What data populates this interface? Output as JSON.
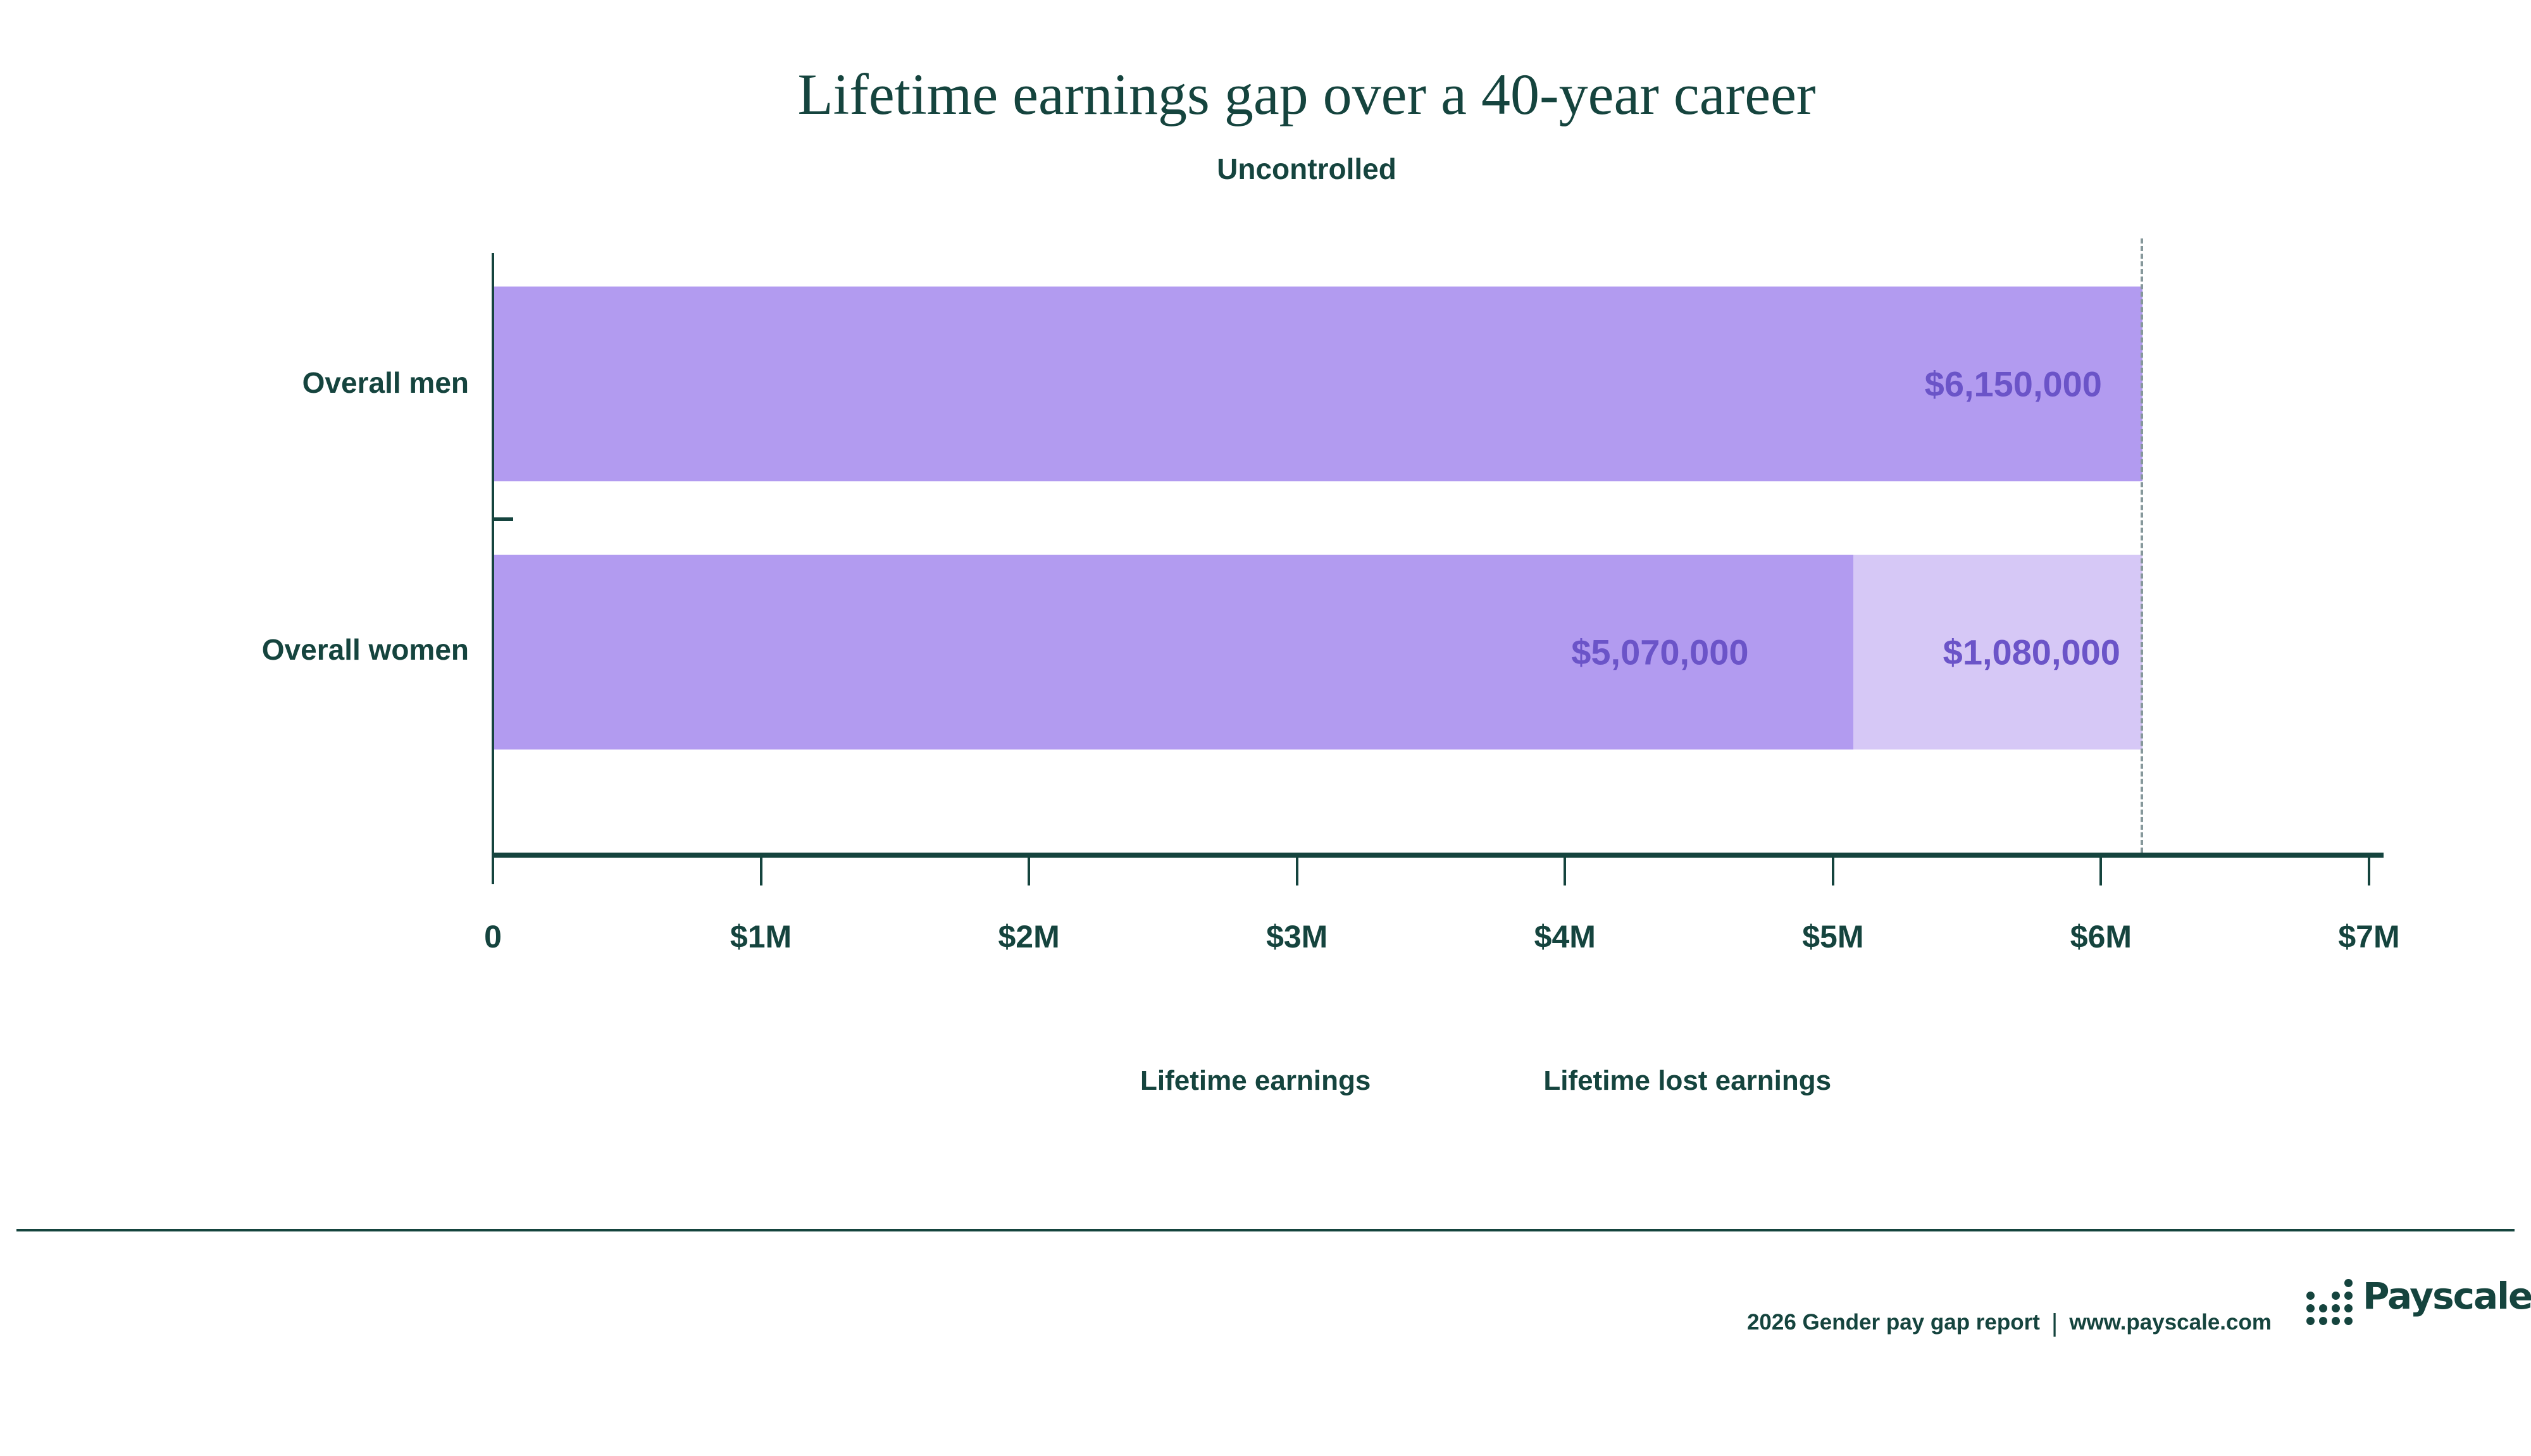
{
  "header": {
    "title": "Lifetime earnings gap over a 40-year career",
    "subtitle": "Uncontrolled"
  },
  "chart_data": {
    "type": "bar",
    "orientation": "horizontal",
    "title": "Lifetime earnings gap over a 40-year career",
    "subtitle": "Uncontrolled",
    "categories": [
      "Overall men",
      "Overall women"
    ],
    "series": [
      {
        "name": "Lifetime earnings",
        "values": [
          6150000,
          5070000
        ],
        "labels": [
          "$6,150,000",
          "$5,070,000"
        ],
        "color": "#B29BF0"
      },
      {
        "name": "Lifetime lost earnings",
        "values": [
          0,
          1080000
        ],
        "labels": [
          "",
          "$1,080,000"
        ],
        "color": "#D6C8F6"
      }
    ],
    "xlim": [
      0,
      7000000
    ],
    "x_ticks": [
      "0",
      "$1M",
      "$2M",
      "$3M",
      "$4M",
      "$5M",
      "$6M",
      "$7M"
    ],
    "reference_line": {
      "value": 6150000,
      "style": "dashed"
    },
    "legend_position": "bottom",
    "grid": false
  },
  "colors": {
    "teal": "#15443E",
    "bar_purple": "#B29BF0",
    "bar_purple_light": "#D6C8F6",
    "value_text": "#6B54C8",
    "dashed_line": "#86989B"
  },
  "footer": {
    "report": "2026 Gender pay gap report",
    "separator": "|",
    "url": "www.payscale.com",
    "brand": "Payscale"
  }
}
